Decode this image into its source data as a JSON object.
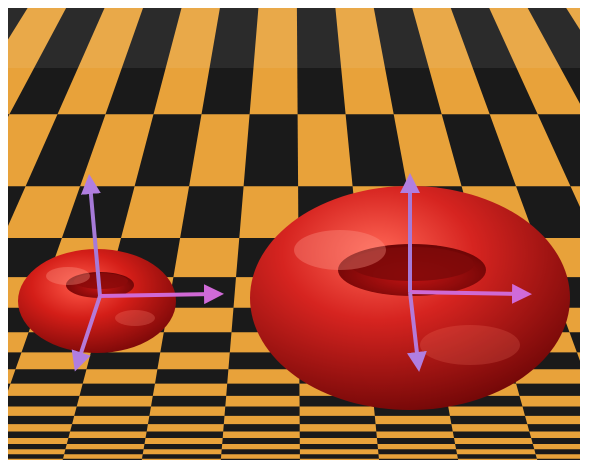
{
  "scene": {
    "description_free": true,
    "floor": {
      "pattern": "checkerboard",
      "color_light": "#e8a23a",
      "color_dark": "#1a1a1a"
    },
    "objects": [
      {
        "kind": "torus",
        "color": "#c81818",
        "size": "small",
        "position": "left"
      },
      {
        "kind": "torus",
        "color": "#c81818",
        "size": "large",
        "position": "right"
      }
    ],
    "axis_arrows": {
      "colors": {
        "up": "#a877d4",
        "right": "#cc66d0",
        "front": "#b97ad8"
      },
      "count_per_object": 3
    },
    "background": "#ffffff"
  }
}
